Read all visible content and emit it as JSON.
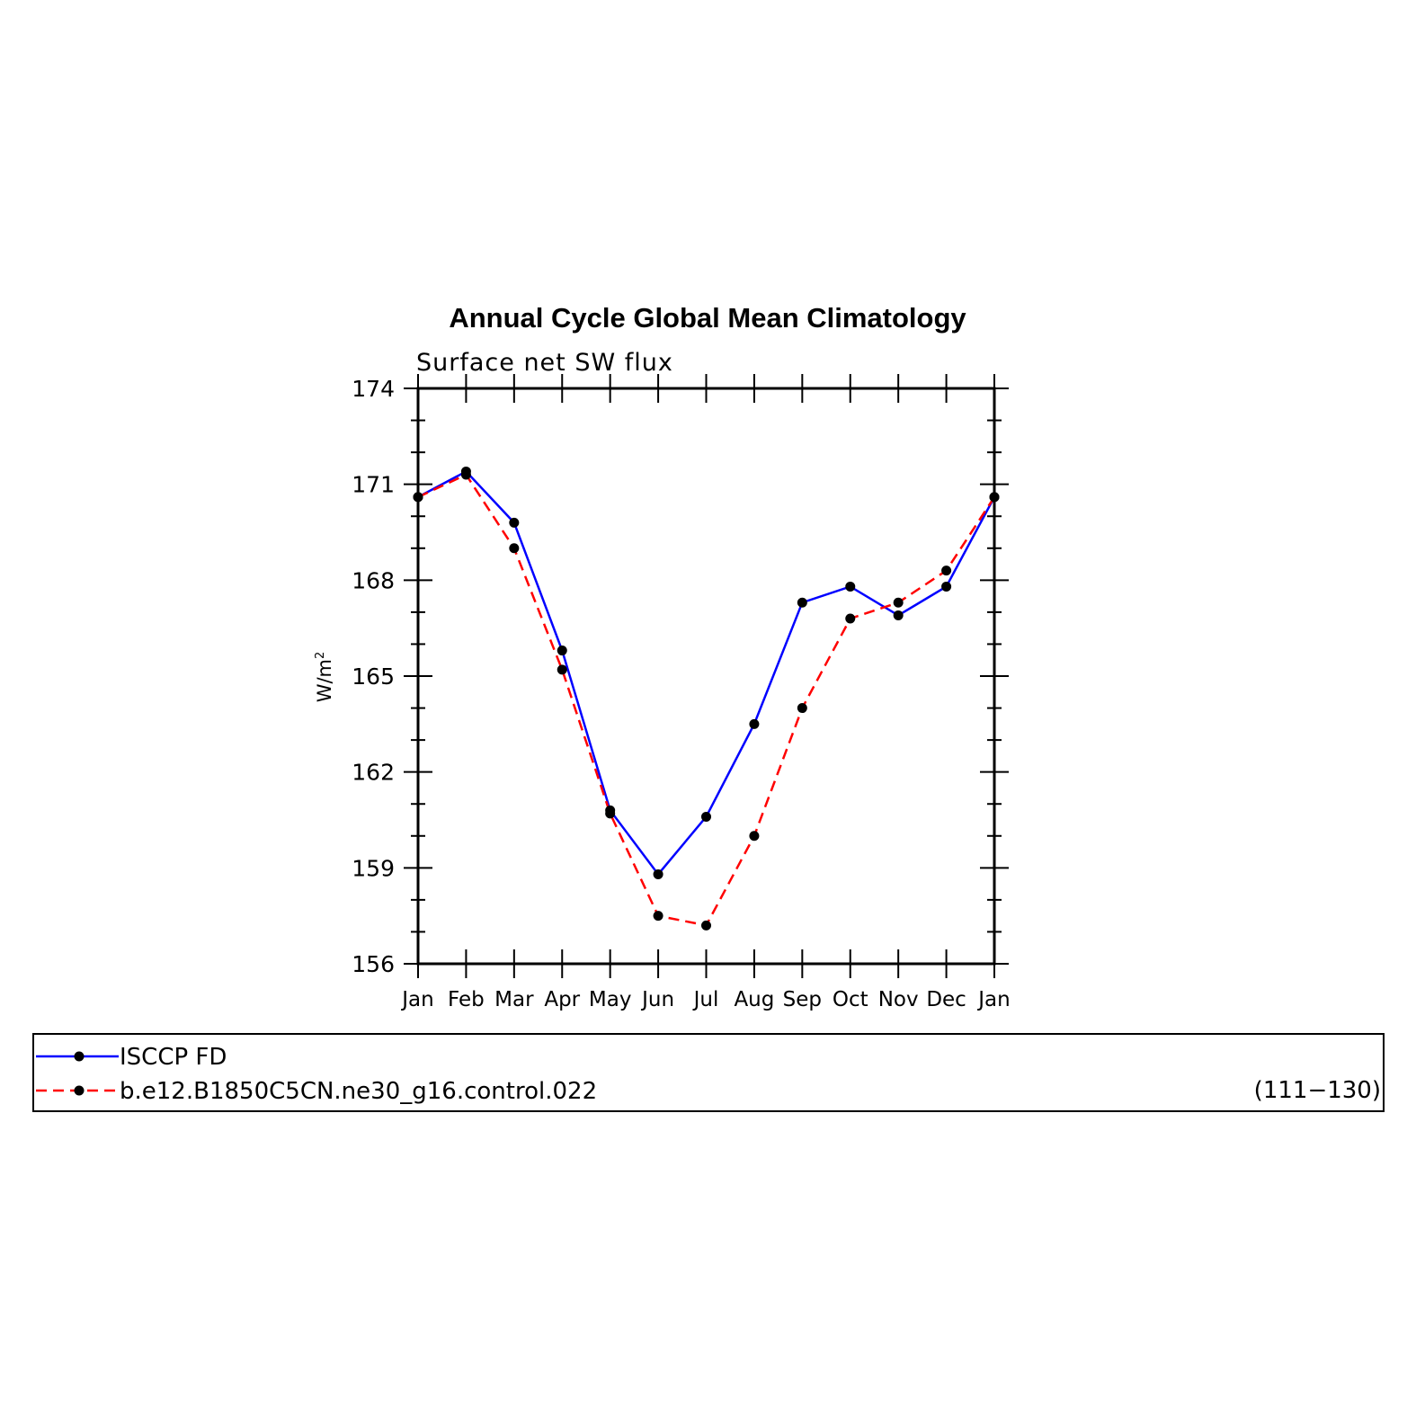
{
  "chart_data": {
    "type": "line",
    "title": "Annual Cycle Global Mean Climatology",
    "subtitle": "Surface net SW flux",
    "ylabel": "W/m",
    "ylabel_sup": "2",
    "ylim": [
      156,
      174
    ],
    "yticks": [
      "156",
      "159",
      "162",
      "165",
      "168",
      "171",
      "174"
    ],
    "categories": [
      "Jan",
      "Feb",
      "Mar",
      "Apr",
      "May",
      "Jun",
      "Jul",
      "Aug",
      "Sep",
      "Oct",
      "Nov",
      "Dec",
      "Jan"
    ],
    "series": [
      {
        "name": "ISCCP FD",
        "color": "#0000ff",
        "dash": "solid",
        "values": [
          170.6,
          171.4,
          169.8,
          165.8,
          160.8,
          158.8,
          160.6,
          163.5,
          167.3,
          167.8,
          166.9,
          167.8,
          170.6
        ]
      },
      {
        "name": "b.e12.B1850C5CN.ne30_g16.control.022",
        "color": "#ff0000",
        "dash": "dashed",
        "values": [
          170.6,
          171.3,
          169.0,
          165.2,
          160.7,
          157.5,
          157.2,
          160.0,
          164.0,
          166.8,
          167.3,
          168.3,
          170.6
        ]
      }
    ],
    "legend": {
      "placement": "bottom",
      "extra_text": "(111−130)"
    }
  }
}
